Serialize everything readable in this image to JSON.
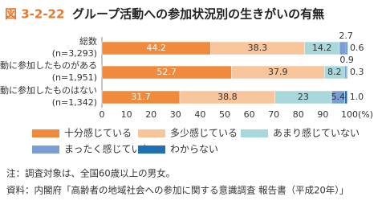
{
  "chart_data": {
    "type": "stacked-bar-horizontal",
    "figure_label": "図 3-2-22",
    "title": "グループ活動への参加状況別の生きがいの有無",
    "categories": [
      "総数",
      "活動に参加したものがある",
      "活動に参加したものはない"
    ],
    "category_notes": [
      "(n=3,293)",
      "(n=1,951)",
      "(n=1,342)"
    ],
    "series": [
      {
        "name": "十分感じている",
        "color": "#f08a3c",
        "values": [
          44.2,
          52.7,
          31.7
        ]
      },
      {
        "name": "多少感じている",
        "color": "#f9c59a",
        "values": [
          38.3,
          37.9,
          38.8
        ]
      },
      {
        "name": "あまり感じていない",
        "color": "#a8d8dc",
        "values": [
          14.2,
          8.2,
          23
        ]
      },
      {
        "name": "まったく感じていない",
        "color": "#7b9fd4",
        "values": [
          2.7,
          0.9,
          5.4
        ]
      },
      {
        "name": "わからない",
        "color": "#1f6fb5",
        "values": [
          0.6,
          0.3,
          1.0
        ],
        "value_labels": [
          "0.6",
          "0.3",
          "1.0"
        ]
      }
    ],
    "xlim": [
      0,
      100
    ],
    "xticks": [
      0,
      10,
      20,
      30,
      40,
      50,
      60,
      70,
      80,
      90,
      {
        "value": 100,
        "label": "100(%)"
      }
    ],
    "notes": [
      "注：調査対象は、全国60歳以上の男女。",
      "資料：内閣府「高齢者の地域社会への参加に関する意識調査 報告書（平成20年）」"
    ]
  }
}
